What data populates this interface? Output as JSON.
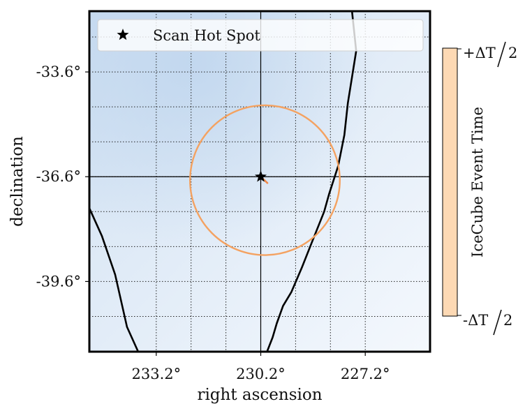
{
  "chart_data": {
    "type": "scatter",
    "xlabel": "right ascension",
    "ylabel": "declination",
    "x_ticks": [
      {
        "value": 233.2,
        "label": "233.2°"
      },
      {
        "value": 230.2,
        "label": "230.2°"
      },
      {
        "value": 227.2,
        "label": "227.2°"
      }
    ],
    "y_ticks": [
      {
        "value": -33.6,
        "label": "-33.6°"
      },
      {
        "value": -36.6,
        "label": "-36.6°"
      },
      {
        "value": -39.6,
        "label": "-39.6°"
      }
    ],
    "xlim": [
      235.12,
      225.34
    ],
    "ylim": [
      -41.61,
      -31.86
    ],
    "x_inverted": true,
    "grid": "dotted",
    "legend": {
      "placement": "top",
      "entries": [
        {
          "label": "Scan Hot Spot",
          "marker": "star",
          "color": "#000000"
        }
      ]
    },
    "hot_spot": {
      "ra": 230.2,
      "dec": -36.6
    },
    "crosshair": {
      "ra": 230.2,
      "dec": -36.6
    },
    "error_circle": {
      "ra": 230.08,
      "dec": -36.7,
      "radius_deg": 2.15,
      "color": "#f4a261"
    },
    "event_tail": {
      "ra": [
        230.2,
        230.01
      ],
      "dec": [
        -36.6,
        -36.78
      ],
      "color": "#f08a4b"
    },
    "galactic_plane_curve": {
      "color": "#000000",
      "ra": [
        227.58,
        227.46,
        227.7,
        227.8,
        227.98,
        228.24,
        228.38,
        228.54,
        228.74,
        229.02,
        229.32,
        229.56,
        229.74,
        229.86,
        230.02
      ],
      "dec": [
        -31.86,
        -33.0,
        -34.5,
        -35.4,
        -36.3,
        -37.1,
        -37.6,
        -38.0,
        -38.5,
        -39.2,
        -39.9,
        -40.3,
        -40.8,
        -41.2,
        -41.61
      ]
    },
    "left_curve": {
      "color": "#000000",
      "ra": [
        235.12,
        234.76,
        234.38,
        234.04,
        233.72
      ],
      "dec": [
        -37.5,
        -38.3,
        -39.4,
        -40.9,
        -41.61
      ]
    },
    "colorbar": {
      "label": "IceCube Event Time",
      "top_label": "+ΔT",
      "bottom_label": "-ΔT",
      "fraction": "2",
      "colors": [
        "#fdd9b4",
        "#f4a261",
        "#e76f51",
        "#b2302f",
        "#5a1d24",
        "#161616",
        "#2a2450",
        "#4a4fb0",
        "#4a7fd6",
        "#6fb0de",
        "#b5e0da"
      ]
    },
    "background_colors": {
      "light": "#f4f8fd",
      "dark": "#c9dcf0"
    }
  }
}
